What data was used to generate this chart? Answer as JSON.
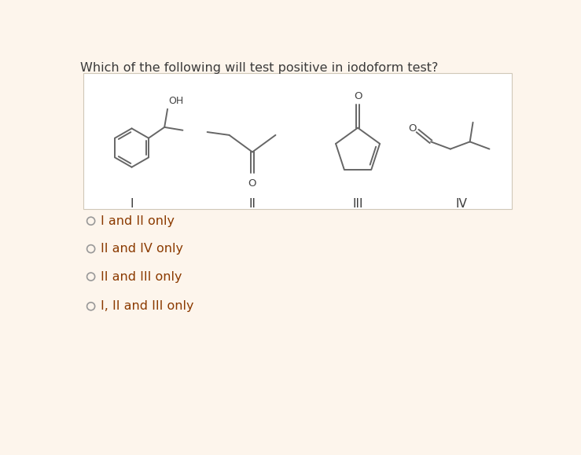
{
  "background_color": "#fdf5ec",
  "white_box_color": "#ffffff",
  "question_text": "Which of the following will test positive in iodoform test?",
  "question_color": "#3a3a3a",
  "question_fontsize": 11.5,
  "options": [
    "I and II only",
    "II and IV only",
    "II and III only",
    "I, II and III only"
  ],
  "option_color": "#8b3a00",
  "option_fontsize": 11.5,
  "roman_labels": [
    "I",
    "II",
    "III",
    "IV"
  ],
  "label_color": "#3a3a3a",
  "structure_line_color": "#666666",
  "atom_label_color": "#444444"
}
